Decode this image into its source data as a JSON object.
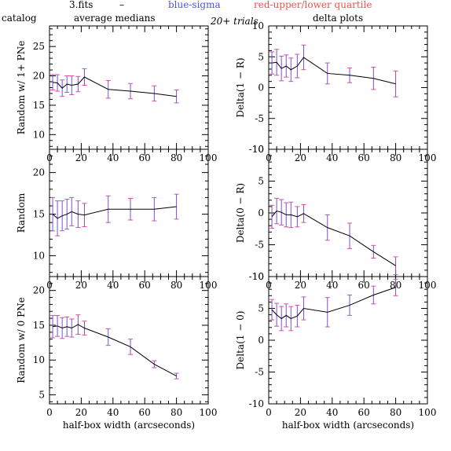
{
  "header": {
    "file": "3.fits",
    "dash": "–",
    "blue": "blue-sigma",
    "red": "red-upper/lower quartile",
    "catalog": "catalog",
    "avg": "average medians",
    "trials": "20+ trials",
    "delta": "delta plots"
  },
  "colors": {
    "blue": "#4f4fe8",
    "red": "#f05050",
    "errorbar": "#7a4fd0",
    "cap": "#d24fa0"
  },
  "chart_data": [
    {
      "type": "line",
      "xlabel": "",
      "ylabel": "Random w/ 1+ PNe",
      "xlim": [
        0,
        100
      ],
      "ylim": [
        7.5,
        28.5
      ],
      "xticks": [
        0,
        20,
        40,
        60,
        80,
        100
      ],
      "yticks": [
        10,
        15,
        20,
        25
      ],
      "x": [
        2,
        5,
        8,
        11,
        14,
        18,
        22,
        37,
        51,
        66,
        80
      ],
      "y": [
        18.9,
        18.8,
        17.9,
        18.6,
        18.4,
        18.6,
        19.8,
        17.7,
        17.4,
        17.0,
        16.5
      ],
      "err": [
        1.3,
        1.4,
        1.4,
        1.4,
        1.6,
        1.3,
        1.4,
        1.5,
        1.3,
        1.3,
        1.1
      ]
    },
    {
      "type": "line",
      "xlabel": "",
      "ylabel": "Delta(1 − R)",
      "xlim": [
        0,
        100
      ],
      "ylim": [
        -10,
        10
      ],
      "xticks": [
        0,
        20,
        40,
        60,
        80,
        100
      ],
      "yticks": [
        -10,
        -5,
        0,
        5,
        10
      ],
      "x": [
        2,
        5,
        8,
        11,
        14,
        18,
        22,
        37,
        51,
        66,
        80
      ],
      "y": [
        4.0,
        4.1,
        3.1,
        3.5,
        2.9,
        3.5,
        4.9,
        2.3,
        2.0,
        1.5,
        0.6
      ],
      "err": [
        1.8,
        2.1,
        2.0,
        1.8,
        1.9,
        1.9,
        2.0,
        1.7,
        1.2,
        1.8,
        2.1
      ]
    },
    {
      "type": "line",
      "xlabel": "",
      "ylabel": "Random",
      "xlim": [
        0,
        100
      ],
      "ylim": [
        7.5,
        22.8
      ],
      "xticks": [
        0,
        20,
        40,
        60,
        80,
        100
      ],
      "yticks": [
        10,
        15,
        20
      ],
      "x": [
        2,
        5,
        8,
        11,
        14,
        18,
        22,
        37,
        51,
        66,
        80
      ],
      "y": [
        15.0,
        14.5,
        14.8,
        15.0,
        15.3,
        15.0,
        14.9,
        15.6,
        15.6,
        15.6,
        15.9
      ],
      "err": [
        2.0,
        2.1,
        1.8,
        1.8,
        1.7,
        1.6,
        1.4,
        1.6,
        1.3,
        1.4,
        1.5
      ]
    },
    {
      "type": "line",
      "xlabel": "",
      "ylabel": "Delta(0 − R)",
      "xlim": [
        0,
        100
      ],
      "ylim": [
        -10,
        10
      ],
      "xticks": [
        0,
        20,
        40,
        60,
        80,
        100
      ],
      "yticks": [
        -10,
        -5,
        0,
        5,
        10
      ],
      "x": [
        2,
        5,
        8,
        11,
        14,
        18,
        22,
        37,
        51,
        66,
        80
      ],
      "y": [
        -0.6,
        0.3,
        0.1,
        -0.3,
        -0.3,
        -0.6,
        -0.1,
        -2.3,
        -3.6,
        -6.1,
        -8.3
      ],
      "err": [
        1.8,
        2.0,
        2.0,
        1.9,
        2.0,
        1.6,
        1.4,
        2.0,
        2.0,
        1.0,
        1.4
      ]
    },
    {
      "type": "line",
      "xlabel": "half-box width (arcseconds)",
      "ylabel": "Random w/ 0 PNe",
      "xlim": [
        0,
        100
      ],
      "ylim": [
        3.7,
        22
      ],
      "xticks": [
        0,
        20,
        40,
        60,
        80,
        100
      ],
      "yticks": [
        5,
        10,
        15,
        20
      ],
      "x": [
        2,
        5,
        8,
        11,
        14,
        18,
        22,
        37,
        51,
        66,
        80
      ],
      "y": [
        14.8,
        14.9,
        14.6,
        14.8,
        14.6,
        15.1,
        14.6,
        13.3,
        11.9,
        9.4,
        7.7
      ],
      "err": [
        1.6,
        1.5,
        1.5,
        1.4,
        1.3,
        1.4,
        1.0,
        1.2,
        1.1,
        0.5,
        0.4
      ]
    },
    {
      "type": "line",
      "xlabel": "half-box width (arcseconds)",
      "ylabel": "Delta(1 − 0)",
      "xlim": [
        0,
        100
      ],
      "ylim": [
        -10,
        10
      ],
      "xticks": [
        0,
        20,
        40,
        60,
        80,
        100
      ],
      "yticks": [
        -10,
        -5,
        0,
        5,
        10
      ],
      "x": [
        2,
        5,
        8,
        11,
        14,
        18,
        22,
        37,
        51,
        66,
        80
      ],
      "y": [
        4.8,
        4.0,
        3.4,
        3.9,
        3.4,
        3.8,
        5.0,
        4.4,
        5.5,
        7.1,
        8.3
      ],
      "err": [
        1.6,
        1.8,
        1.9,
        1.8,
        1.9,
        1.7,
        1.8,
        2.3,
        1.6,
        1.4,
        1.3
      ]
    }
  ]
}
